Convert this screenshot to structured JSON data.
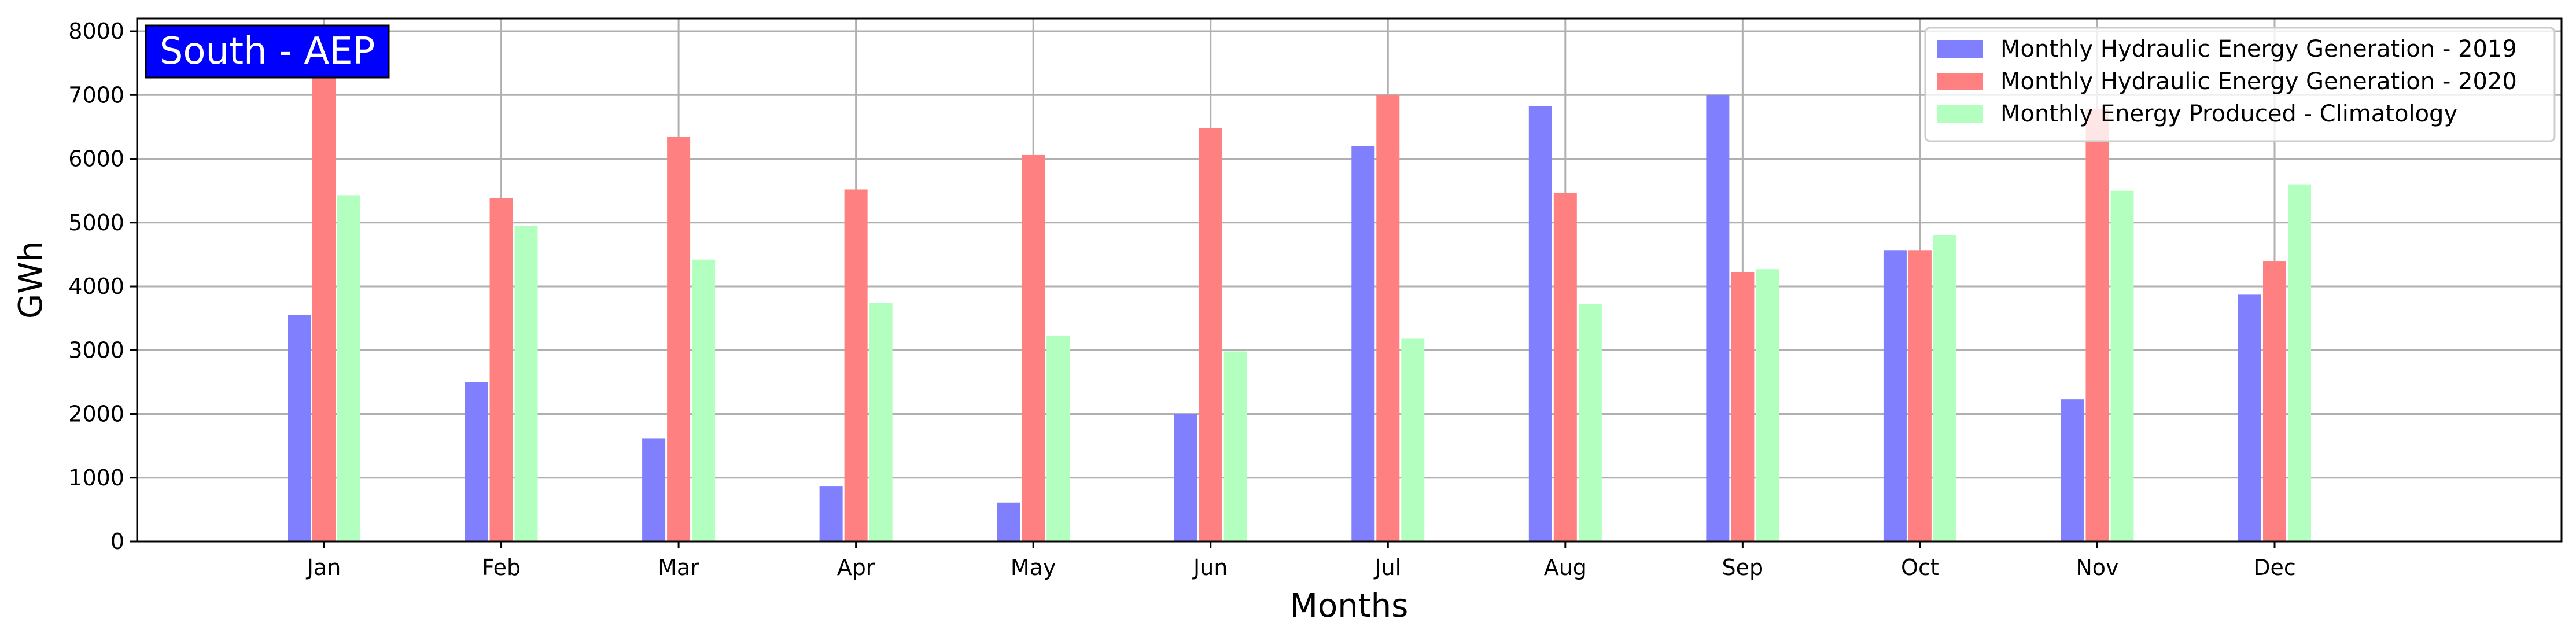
{
  "chart_data": {
    "type": "bar",
    "title": "South - AEP",
    "title_box_color": "#0000ff",
    "xlabel": "Months",
    "ylabel": "GWh",
    "ylim": [
      0,
      8200
    ],
    "yticks": [
      0,
      1000,
      2000,
      3000,
      4000,
      5000,
      6000,
      7000,
      8000
    ],
    "grid": true,
    "legend_position": "top-right",
    "categories": [
      "Jan",
      "Feb",
      "Mar",
      "Apr",
      "May",
      "Jun",
      "Jul",
      "Aug",
      "Sep",
      "Oct",
      "Nov",
      "Dec"
    ],
    "series": [
      {
        "name": "Monthly Hydraulic Energy Generation - 2019",
        "color": "#8080ff",
        "values": [
          3550,
          2500,
          1620,
          870,
          610,
          2000,
          6200,
          6830,
          7000,
          4560,
          2230,
          3870
        ]
      },
      {
        "name": "Monthly Hydraulic Energy Generation - 2020",
        "color": "#ff8080",
        "values": [
          7350,
          5380,
          6350,
          5520,
          6060,
          6480,
          7000,
          5470,
          4220,
          4560,
          6780,
          4390
        ]
      },
      {
        "name": "Monthly Energy Produced - Climatology",
        "color": "#b3ffbf",
        "values": [
          5430,
          4950,
          4420,
          3740,
          3230,
          2980,
          3180,
          3720,
          4270,
          4800,
          5500,
          5600
        ]
      }
    ]
  }
}
